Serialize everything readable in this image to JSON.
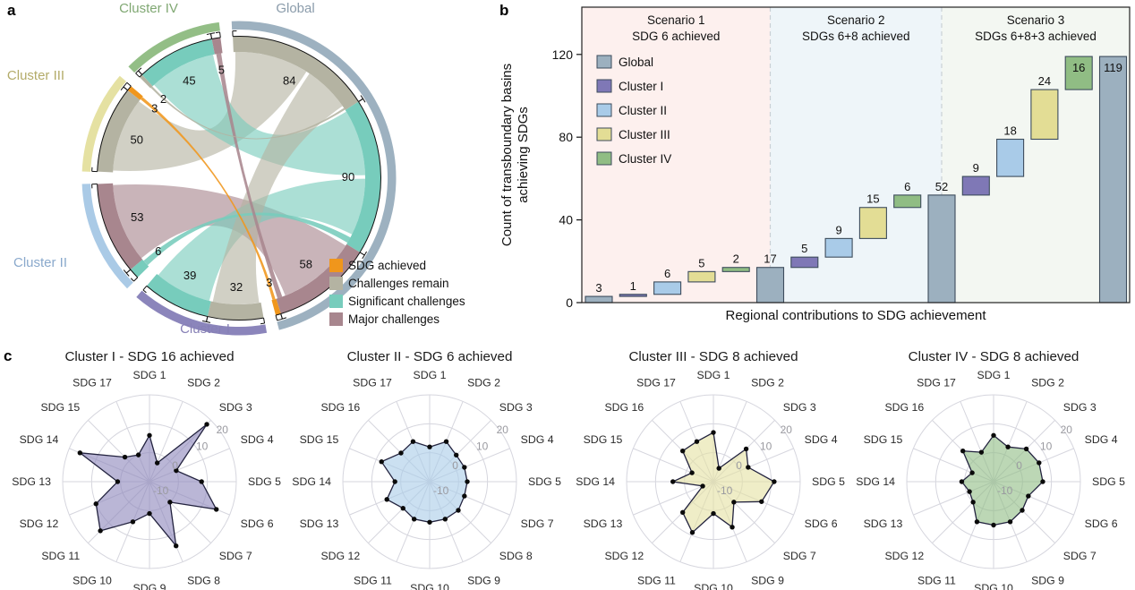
{
  "panels": {
    "a": "a",
    "b": "b",
    "c": "c"
  },
  "chart_data": [
    {
      "id": "chord",
      "type": "chord",
      "description": "SDG achievement status of transboundary basins by region",
      "categories": {
        "SDG achieved": "#f0961c",
        "Challenges remain": "#b4b3a2",
        "Significant challenges": "#77ccbc",
        "Major challenges": "#a8868e"
      },
      "legend": [
        {
          "label": "SDG achieved",
          "color": "#f0961c"
        },
        {
          "label": "Challenges remain",
          "color": "#b4b3a2"
        },
        {
          "label": "Significant challenges",
          "color": "#77ccbc"
        },
        {
          "label": "Major challenges",
          "color": "#a8868e"
        }
      ],
      "groups": [
        {
          "name": "Global",
          "color": "#9db1c0",
          "text_color": "#8b9cab",
          "segments": [
            {
              "category": "Challenges remain",
              "value": 84
            },
            {
              "category": "Significant challenges",
              "value": 90
            },
            {
              "category": "Major challenges",
              "value": 58
            },
            {
              "category": "SDG achieved",
              "value": 3
            }
          ]
        },
        {
          "name": "Cluster I",
          "color": "#8b85bb",
          "text_color": "#8780b6",
          "segments": [
            {
              "category": "Challenges remain",
              "value": 32
            },
            {
              "category": "Significant challenges",
              "value": 39
            }
          ]
        },
        {
          "name": "Cluster II",
          "color": "#aacae6",
          "text_color": "#8aa9cc",
          "segments": [
            {
              "category": "Significant challenges",
              "value": 6
            },
            {
              "category": "Major challenges",
              "value": 53
            }
          ]
        },
        {
          "name": "Cluster III",
          "color": "#e5e1a2",
          "text_color": "#b3ab69",
          "segments": [
            {
              "category": "Challenges remain",
              "value": 50
            },
            {
              "category": "SDG achieved",
              "value": 3
            }
          ]
        },
        {
          "name": "Cluster IV",
          "color": "#93be86",
          "text_color": "#80a873",
          "segments": [
            {
              "category": "Challenges remain",
              "value": 2
            },
            {
              "category": "Significant challenges",
              "value": 45
            },
            {
              "category": "Major challenges",
              "value": 5
            }
          ]
        }
      ],
      "ribbons": [
        {
          "category": "Challenges remain",
          "from": "Cluster III",
          "to": "Global",
          "value": 50
        },
        {
          "category": "Challenges remain",
          "from": "Cluster I",
          "to": "Global",
          "value": 32
        },
        {
          "category": "Challenges remain",
          "from": "Cluster IV",
          "to": "Global",
          "value": 2
        },
        {
          "category": "Significant challenges",
          "from": "Cluster IV",
          "to": "Global",
          "value": 45
        },
        {
          "category": "Significant challenges",
          "from": "Cluster I",
          "to": "Global",
          "value": 39
        },
        {
          "category": "Significant challenges",
          "from": "Cluster II",
          "to": "Global",
          "value": 6
        },
        {
          "category": "Major challenges",
          "from": "Cluster II",
          "to": "Global",
          "value": 53
        },
        {
          "category": "Major challenges",
          "from": "Cluster IV",
          "to": "Global",
          "value": 5
        },
        {
          "category": "SDG achieved",
          "from": "Cluster III",
          "to": "Global",
          "value": 3
        }
      ]
    },
    {
      "id": "waterfall",
      "type": "bar",
      "xlabel": "Regional contributions to SDG achievement",
      "ylabel": "Count of transboundary basins achieving SDGs",
      "ylabel_line1": "Count of transboundary basins",
      "ylabel_line2": "achieving SDGs",
      "yticks": [
        0,
        40,
        80,
        120
      ],
      "ylim": [
        0,
        130
      ],
      "scenarios": [
        {
          "title": "Scenario 1",
          "subtitle": "SDG 6 achieved",
          "bg": "#fdf0ee"
        },
        {
          "title": "Scenario 2",
          "subtitle": "SDGs 6+8 achieved",
          "bg": "#eef5f9"
        },
        {
          "title": "Scenario 3",
          "subtitle": "SDGs 6+8+3 achieved",
          "bg": "#f3f7f2"
        }
      ],
      "series_colors": {
        "Global": "#9cb0bf",
        "Cluster I": "#7f78b6",
        "Cluster II": "#a9cbe8",
        "Cluster III": "#e3dd95",
        "Cluster IV": "#90bd84"
      },
      "legend": [
        {
          "label": "Global",
          "color": "#9cb0bf"
        },
        {
          "label": "Cluster I",
          "color": "#7f78b6"
        },
        {
          "label": "Cluster II",
          "color": "#a9cbe8"
        },
        {
          "label": "Cluster III",
          "color": "#e3dd95"
        },
        {
          "label": "Cluster IV",
          "color": "#90bd84"
        }
      ],
      "bars": [
        {
          "series": "Global",
          "value": 3,
          "start": 0,
          "scenario": 0,
          "label_pos": "above"
        },
        {
          "series": "Cluster I",
          "value": 1,
          "start": 3,
          "scenario": 0,
          "label_pos": "above"
        },
        {
          "series": "Cluster II",
          "value": 6,
          "start": 4,
          "scenario": 0,
          "label_pos": "above"
        },
        {
          "series": "Cluster III",
          "value": 5,
          "start": 10,
          "scenario": 0,
          "label_pos": "above"
        },
        {
          "series": "Cluster IV",
          "value": 2,
          "start": 15,
          "scenario": 0,
          "label_pos": "above"
        },
        {
          "series": "Global",
          "value": 17,
          "start": 0,
          "scenario": 0,
          "label_pos": "above"
        },
        {
          "series": "Cluster I",
          "value": 5,
          "start": 17,
          "scenario": 1,
          "label_pos": "above"
        },
        {
          "series": "Cluster II",
          "value": 9,
          "start": 22,
          "scenario": 1,
          "label_pos": "above"
        },
        {
          "series": "Cluster III",
          "value": 15,
          "start": 31,
          "scenario": 1,
          "label_pos": "above"
        },
        {
          "series": "Cluster IV",
          "value": 6,
          "start": 46,
          "scenario": 1,
          "label_pos": "above"
        },
        {
          "series": "Global",
          "value": 52,
          "start": 0,
          "scenario": 1,
          "label_pos": "above"
        },
        {
          "series": "Cluster I",
          "value": 9,
          "start": 52,
          "scenario": 2,
          "label_pos": "above"
        },
        {
          "series": "Cluster II",
          "value": 18,
          "start": 61,
          "scenario": 2,
          "label_pos": "above"
        },
        {
          "series": "Cluster III",
          "value": 24,
          "start": 79,
          "scenario": 2,
          "label_pos": "above"
        },
        {
          "series": "Cluster IV",
          "value": 16,
          "start": 103,
          "scenario": 2,
          "label_pos": "inside"
        },
        {
          "series": "Global",
          "value": 119,
          "start": 0,
          "scenario": 2,
          "label_pos": "inside"
        }
      ]
    },
    {
      "id": "radar-cluster-1",
      "type": "radar",
      "title": "Cluster I - SDG 16 achieved",
      "fill": "#8c86bb",
      "stroke": "#23233f",
      "rlim": [
        -10,
        20
      ],
      "rticks": [
        -10,
        0,
        10,
        20
      ],
      "axes": [
        "SDG 1",
        "SDG 2",
        "SDG 3",
        "SDG 4",
        "SDG 5",
        "SDG 6",
        "SDG 7",
        "SDG 8",
        "SDG 9",
        "SDG 10",
        "SDG 11",
        "SDG 12",
        "SDG 13",
        "SDG 14",
        "SDG 15",
        "SDG 17"
      ],
      "values": [
        6,
        -3,
        18,
        0,
        8,
        15,
        0,
        14,
        1,
        5,
        14,
        10,
        1,
        16,
        2,
        0
      ]
    },
    {
      "id": "radar-cluster-2",
      "type": "radar",
      "title": "Cluster II - SDG 6 achieved",
      "fill": "#a9cbe8",
      "stroke": "#23233f",
      "rlim": [
        -10,
        20
      ],
      "rticks": [
        -10,
        0,
        10,
        20
      ],
      "axes": [
        "SDG 1",
        "SDG 2",
        "SDG 3",
        "SDG 4",
        "SDG 5",
        "SDG 7",
        "SDG 8",
        "SDG 9",
        "SDG 10",
        "SDG 11",
        "SDG 12",
        "SDG 13",
        "SDG 14",
        "SDG 15",
        "SDG 16",
        "SDG 17"
      ],
      "values": [
        2,
        5,
        3,
        3,
        3,
        3,
        4,
        4,
        4,
        4,
        3,
        6,
        2,
        8,
        4,
        5
      ]
    },
    {
      "id": "radar-cluster-3",
      "type": "radar",
      "title": "Cluster III - SDG 8 achieved",
      "fill": "#e5e1a2",
      "stroke": "#23233f",
      "rlim": [
        -10,
        20
      ],
      "rticks": [
        -10,
        0,
        10,
        20
      ],
      "axes": [
        "SDG 1",
        "SDG 2",
        "SDG 3",
        "SDG 4",
        "SDG 5",
        "SDG 6",
        "SDG 7",
        "SDG 9",
        "SDG 10",
        "SDG 11",
        "SDG 12",
        "SDG 13",
        "SDG 14",
        "SDG 15",
        "SDG 16",
        "SDG 17"
      ],
      "values": [
        7,
        -5,
        6,
        3,
        11,
        8,
        0,
        7,
        1,
        9,
        5,
        -6,
        4,
        -2,
        5,
        5
      ]
    },
    {
      "id": "radar-cluster-4",
      "type": "radar",
      "title": "Cluster IV - SDG 8 achieved",
      "fill": "#90bd84",
      "stroke": "#23233f",
      "rlim": [
        -10,
        20
      ],
      "rticks": [
        -10,
        0,
        10,
        20
      ],
      "axes": [
        "SDG 1",
        "SDG 2",
        "SDG 3",
        "SDG 4",
        "SDG 5",
        "SDG 6",
        "SDG 7",
        "SDG 9",
        "SDG 10",
        "SDG 11",
        "SDG 12",
        "SDG 13",
        "SDG 14",
        "SDG 15",
        "SDG 16",
        "SDG 17"
      ],
      "values": [
        6,
        3,
        6,
        7,
        7,
        3,
        4,
        5,
        5,
        5,
        0,
        -1,
        1,
        -2,
        5,
        1
      ]
    }
  ]
}
